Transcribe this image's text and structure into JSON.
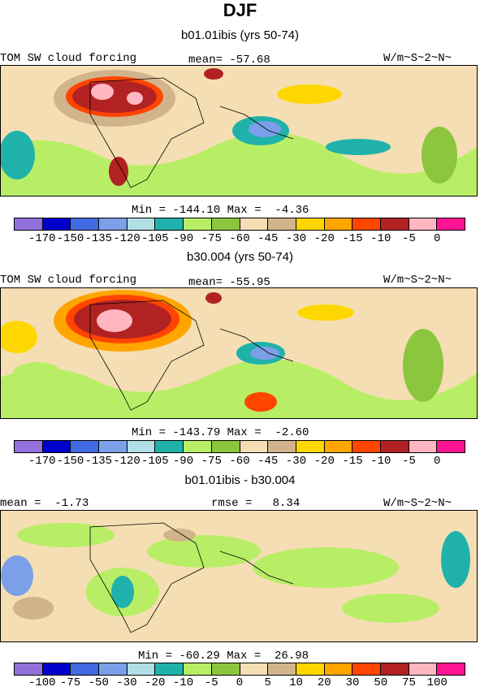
{
  "title": "DJF",
  "panels": [
    {
      "subtitle": "b01.01ibis (yrs 50-74)",
      "left_label": "TOM SW cloud forcing",
      "center_label": "mean= -57.68",
      "right_label": "W/m~S~2~N~",
      "minmax": "Min = -144.10 Max =  -4.36",
      "colorbar_labels": [
        "-170",
        "-150",
        "-135",
        "-120",
        "-105",
        "-90",
        "-75",
        "-60",
        "-45",
        "-30",
        "-20",
        "-15",
        "-10",
        "-5",
        "0"
      ]
    },
    {
      "subtitle": "b30.004 (yrs 50-74)",
      "left_label": "TOM SW cloud forcing",
      "center_label": "mean= -55.95",
      "right_label": "W/m~S~2~N~",
      "minmax": "Min = -143.79 Max =  -2.60",
      "colorbar_labels": [
        "-170",
        "-150",
        "-135",
        "-120",
        "-105",
        "-90",
        "-75",
        "-60",
        "-45",
        "-30",
        "-20",
        "-15",
        "-10",
        "-5",
        "0"
      ]
    },
    {
      "subtitle": "b01.01ibis - b30.004",
      "left_label": "mean =  -1.73",
      "center_label": "rmse =   8.34",
      "right_label": "W/m~S~2~N~",
      "minmax": "Min = -60.29 Max =  26.98",
      "colorbar_labels": [
        "-100",
        "-75",
        "-50",
        "-30",
        "-20",
        "-10",
        "-5",
        "0",
        "5",
        "10",
        "20",
        "30",
        "50",
        "75",
        "100"
      ]
    }
  ],
  "colorbar_colors": [
    "#9370db",
    "#0000cd",
    "#4169e1",
    "#7b9fe8",
    "#b0e0e6",
    "#20b2aa",
    "#b8ee66",
    "#8cc63f",
    "#f5deb3",
    "#d2b48c",
    "#ffd700",
    "#ffa500",
    "#ff4500",
    "#b22222",
    "#ffb6c1",
    "#ff1493"
  ]
}
